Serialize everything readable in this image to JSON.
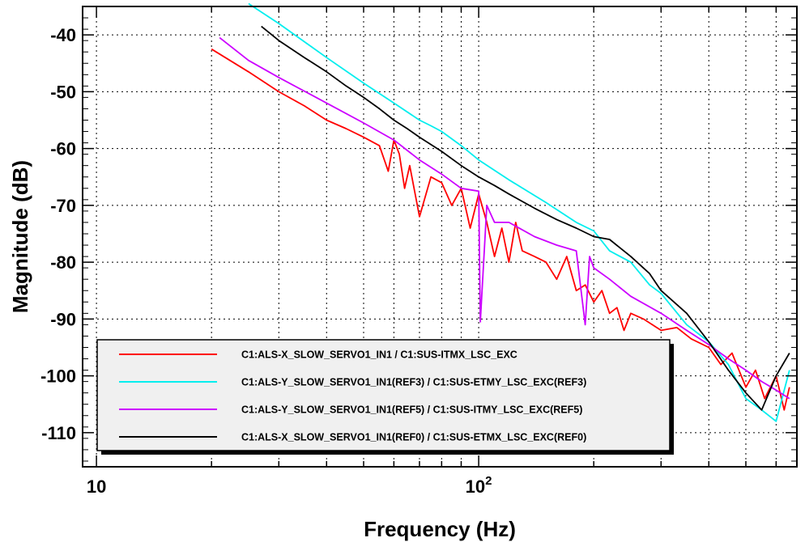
{
  "chart_data": {
    "type": "line",
    "xlabel": "Frequency (Hz)",
    "ylabel": "Magnitude (dB)",
    "x_scale": "log",
    "xlim": [
      9.2,
      680
    ],
    "ylim": [
      -116,
      -35
    ],
    "grid": true,
    "legend_position": "bottom",
    "x_ticks": [
      {
        "value": 10,
        "label": "10",
        "sup": ""
      },
      {
        "value": 100,
        "label": "10",
        "sup": "2"
      }
    ],
    "y_ticks": [
      {
        "value": -40,
        "label": "-40"
      },
      {
        "value": -50,
        "label": "-50"
      },
      {
        "value": -60,
        "label": "-60"
      },
      {
        "value": -70,
        "label": "-70"
      },
      {
        "value": -80,
        "label": "-80"
      },
      {
        "value": -90,
        "label": "-90"
      },
      {
        "value": -100,
        "label": "-100"
      },
      {
        "value": -110,
        "label": "-110"
      }
    ],
    "series": [
      {
        "name": "C1:ALS-X_SLOW_SERVO1_IN1 / C1:SUS-ITMX_LSC_EXC",
        "color": "#ff0000",
        "x": [
          20,
          25,
          30,
          35,
          40,
          45,
          50,
          55,
          58,
          60,
          62,
          64,
          66,
          70,
          75,
          80,
          85,
          90,
          95,
          100,
          105,
          110,
          115,
          120,
          125,
          130,
          140,
          150,
          160,
          170,
          180,
          190,
          200,
          210,
          220,
          230,
          240,
          250,
          270,
          300,
          330,
          360,
          400,
          430,
          460,
          500,
          530,
          560,
          600,
          630,
          650
        ],
        "y": [
          -42.5,
          -46.5,
          -50,
          -52.5,
          -55,
          -56.5,
          -58,
          -59.5,
          -64,
          -58.5,
          -61,
          -67,
          -63,
          -72,
          -65,
          -66,
          -70,
          -67,
          -74,
          -68,
          -73,
          -79,
          -74,
          -80,
          -73,
          -78,
          -79,
          -80,
          -83,
          -79,
          -85,
          -84,
          -87,
          -85,
          -89,
          -88,
          -92,
          -89,
          -90,
          -92,
          -91.5,
          -93.5,
          -95,
          -98,
          -96,
          -102,
          -99,
          -104,
          -100,
          -106,
          -102
        ]
      },
      {
        "name": "C1:ALS-Y_SLOW_SERVO1_IN1(REF3) / C1:SUS-ETMY_LSC_EXC(REF3)",
        "color": "#00eeee",
        "x": [
          25,
          30,
          40,
          50,
          60,
          70,
          75,
          80,
          90,
          100,
          120,
          150,
          180,
          200,
          220,
          250,
          280,
          300,
          350,
          400,
          450,
          500,
          550,
          600,
          650
        ],
        "y": [
          -34.5,
          -38,
          -44,
          -48.5,
          -52,
          -55,
          -56,
          -57,
          -59.5,
          -62,
          -65.5,
          -69.5,
          -73,
          -74.5,
          -78,
          -80,
          -84,
          -85.5,
          -91,
          -94,
          -98,
          -104,
          -106,
          -108,
          -99
        ]
      },
      {
        "name": "C1:ALS-Y_SLOW_SERVO1_IN1(REF5) / C1:SUS-ITMY_LSC_EXC(REF5)",
        "color": "#cc00ff",
        "x": [
          21,
          25,
          30,
          40,
          50,
          60,
          70,
          80,
          90,
          100,
          101,
          105,
          110,
          120,
          140,
          160,
          180,
          190,
          195,
          200,
          220,
          250,
          300,
          350,
          400,
          450,
          500,
          550,
          600,
          650
        ],
        "y": [
          -40.5,
          -44.5,
          -47.5,
          -52,
          -55.5,
          -58.5,
          -62,
          -64.5,
          -67,
          -67.5,
          -90.5,
          -70,
          -73,
          -73,
          -75.5,
          -77,
          -78,
          -91,
          -79,
          -81,
          -83,
          -86,
          -89,
          -92,
          -94.5,
          -97,
          -99,
          -101,
          -102.5,
          -104
        ]
      },
      {
        "name": "C1:ALS-X_SLOW_SERVO1_IN1(REF0) / C1:SUS-ETMX_LSC_EXC(REF0)",
        "color": "#000000",
        "x": [
          27,
          30,
          35,
          40,
          45,
          50,
          55,
          60,
          65,
          70,
          80,
          90,
          100,
          110,
          120,
          140,
          160,
          180,
          200,
          220,
          250,
          280,
          300,
          350,
          400,
          450,
          500,
          550,
          600,
          650
        ],
        "y": [
          -38.5,
          -41,
          -44,
          -46.5,
          -49,
          -51,
          -53,
          -55,
          -56.5,
          -58,
          -60.5,
          -63,
          -65,
          -66.5,
          -68,
          -70.5,
          -72.5,
          -74,
          -75.5,
          -76,
          -79,
          -82,
          -85,
          -89,
          -94,
          -99,
          -103,
          -106,
          -100,
          -96
        ]
      }
    ]
  }
}
